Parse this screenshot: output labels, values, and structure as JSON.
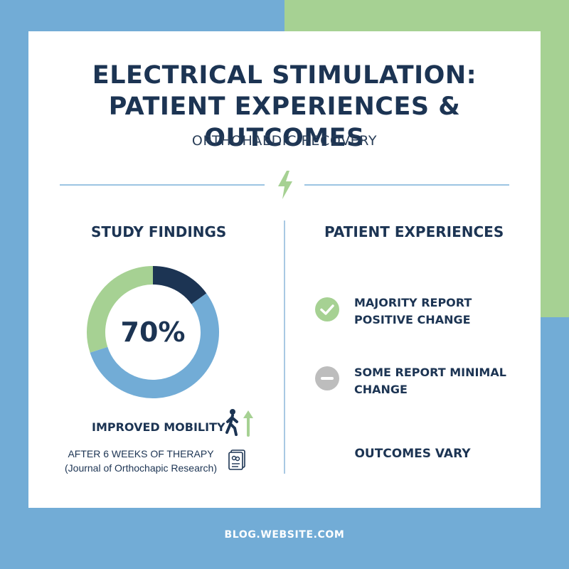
{
  "header": {
    "title_line1": "ELECTRICAL STIMULATION:",
    "title_line2": "PATIENT EXPERIENCES & OUTCOMES",
    "subtitle": "ORTHOHAEDIC RECOVERY"
  },
  "study": {
    "heading": "STUDY FINDINGS",
    "percent_label": "70%",
    "mobility_label": "IMPROVED MOBILITY",
    "note_line1": "AFTER 6 WEEKS OF THERAPY",
    "note_line2": "(Journal of Orthochapic Research)"
  },
  "experiences": {
    "heading": "PATIENT EXPERIENCES",
    "items": [
      {
        "line1": "MAJORITY REPORT",
        "line2": "POSITIVE CHANGE",
        "icon": "check-circle-icon",
        "color": "#a6d193"
      },
      {
        "line1": "SOME REPORT MINIMAL",
        "line2": "CHANGE",
        "icon": "minus-circle-icon",
        "color": "#bdbdbd"
      }
    ],
    "outcomes": "OUTCOMES VARY"
  },
  "chart_data": {
    "type": "pie",
    "categories": [
      "",
      "",
      ""
    ],
    "values": [
      15,
      55,
      30
    ],
    "colors": [
      "#1c3453",
      "#72acd6",
      "#a6d193"
    ]
  },
  "colors": {
    "navy": "#1c3453",
    "blue": "#72acd6",
    "green": "#a6d193",
    "gray": "#bdbdbd"
  },
  "footer": {
    "text": "BLOG.WEBSITE.COM"
  }
}
